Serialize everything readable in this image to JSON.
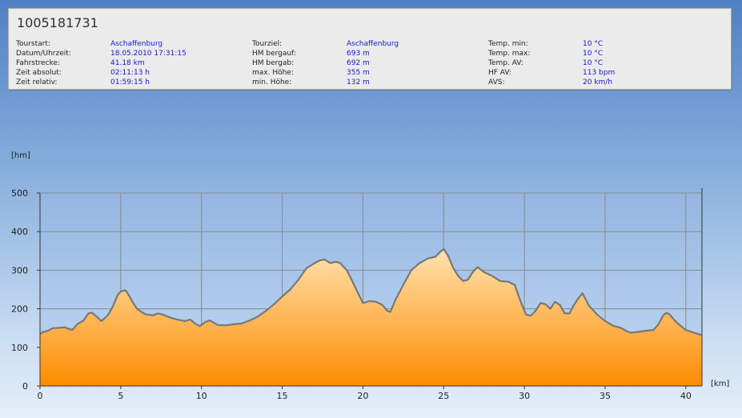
{
  "header": {
    "tour_id": "1005181731"
  },
  "info": {
    "col1": [
      {
        "label": "Tourstart:",
        "value": "Aschaffenburg"
      },
      {
        "label": "Datum/Uhrzeit:",
        "value": "18.05.2010 17:31:15"
      },
      {
        "label": "Fahrstrecke:",
        "value": "41.18 km"
      },
      {
        "label": "Zeit absolut:",
        "value": "02:11:13 h"
      },
      {
        "label": "Zeit relativ:",
        "value": "01:59:15 h"
      }
    ],
    "col2": [
      {
        "label": "Tourziel:",
        "value": "Aschaffenburg"
      },
      {
        "label": "HM bergauf:",
        "value": "693 m"
      },
      {
        "label": "HM bergab:",
        "value": "692 m"
      },
      {
        "label": "max. Höhe:",
        "value": "355 m"
      },
      {
        "label": "min. Höhe:",
        "value": "132 m"
      }
    ],
    "col3": [
      {
        "label": "Temp. min:",
        "value": "10 °C"
      },
      {
        "label": "Temp. max:",
        "value": "10 °C"
      },
      {
        "label": "Temp. AV:",
        "value": "10 °C"
      },
      {
        "label": "HF AV:",
        "value": "113 bpm"
      },
      {
        "label": "AVS:",
        "value": "20 km/h"
      }
    ]
  },
  "chart_data": {
    "type": "area",
    "title": "",
    "xlabel": "[km]",
    "ylabel": "[hm]",
    "xlim": [
      0,
      41
    ],
    "ylim": [
      0,
      500
    ],
    "grid": true,
    "xticks": [
      0,
      5,
      10,
      15,
      20,
      25,
      30,
      35,
      40
    ],
    "yticks": [
      0,
      100,
      200,
      300,
      400,
      500
    ],
    "x_tick_labels": [
      "0",
      "5",
      "10",
      "15",
      "20",
      "25",
      "30",
      "35",
      "40"
    ],
    "y_tick_labels": [
      "0",
      "100",
      "200",
      "300",
      "400",
      "500"
    ],
    "colors": {
      "fill_top": "#ffe2b0",
      "fill_bottom": "#ff8c00",
      "line": "#787878",
      "grid": "#8a8a8a",
      "plot_bg": "#a8c4ea"
    },
    "series": [
      {
        "x": [
          0,
          0.2,
          0.5,
          0.8,
          1.0,
          1.5,
          1.8,
          2.0,
          2.3,
          2.7,
          3.0,
          3.2,
          3.5,
          3.8,
          4.2,
          4.5,
          4.8,
          5.0,
          5.3,
          5.5,
          5.7,
          6.0,
          6.5,
          7.0,
          7.3,
          7.6,
          8.0,
          8.5,
          9.0,
          9.3,
          9.6,
          9.9,
          10.2,
          10.5,
          11.0,
          11.5,
          12.0,
          12.5,
          13.0,
          13.5,
          14.0,
          14.5,
          15.0,
          15.5,
          16.0,
          16.5,
          17.0,
          17.3,
          17.6,
          18.0,
          18.3,
          18.6,
          19.0,
          19.3,
          19.7,
          20.0,
          20.4,
          20.8,
          21.2,
          21.5,
          21.7,
          22.0,
          22.5,
          23.0,
          23.5,
          24.0,
          24.5,
          24.8,
          25.0,
          25.3,
          25.6,
          25.9,
          26.2,
          26.5,
          26.8,
          27.1,
          27.5,
          28.0,
          28.5,
          29.0,
          29.4,
          29.8,
          30.1,
          30.4,
          30.7,
          31.0,
          31.3,
          31.6,
          31.9,
          32.2,
          32.5,
          32.8,
          33.0,
          33.3,
          33.6,
          34.0,
          34.5,
          35.0,
          35.5,
          36.0,
          36.3,
          36.6,
          37.0,
          37.5,
          38.0,
          38.3,
          38.6,
          38.8,
          39.0,
          39.3,
          39.6,
          40.0,
          40.5,
          41.0
        ],
        "y": [
          135,
          140,
          143,
          150,
          150,
          152,
          148,
          145,
          160,
          170,
          188,
          190,
          180,
          168,
          183,
          205,
          235,
          245,
          248,
          235,
          220,
          200,
          186,
          183,
          188,
          185,
          178,
          172,
          168,
          172,
          162,
          155,
          165,
          170,
          158,
          157,
          160,
          162,
          170,
          180,
          195,
          212,
          232,
          250,
          275,
          305,
          318,
          325,
          328,
          318,
          322,
          318,
          300,
          275,
          240,
          215,
          220,
          218,
          210,
          195,
          192,
          222,
          262,
          300,
          318,
          330,
          335,
          348,
          355,
          335,
          305,
          285,
          272,
          275,
          295,
          308,
          295,
          285,
          272,
          270,
          262,
          215,
          185,
          182,
          195,
          215,
          212,
          200,
          218,
          210,
          188,
          188,
          205,
          225,
          240,
          208,
          185,
          168,
          156,
          150,
          143,
          138,
          140,
          143,
          145,
          160,
          183,
          190,
          185,
          170,
          158,
          145,
          138,
          132
        ]
      }
    ]
  }
}
